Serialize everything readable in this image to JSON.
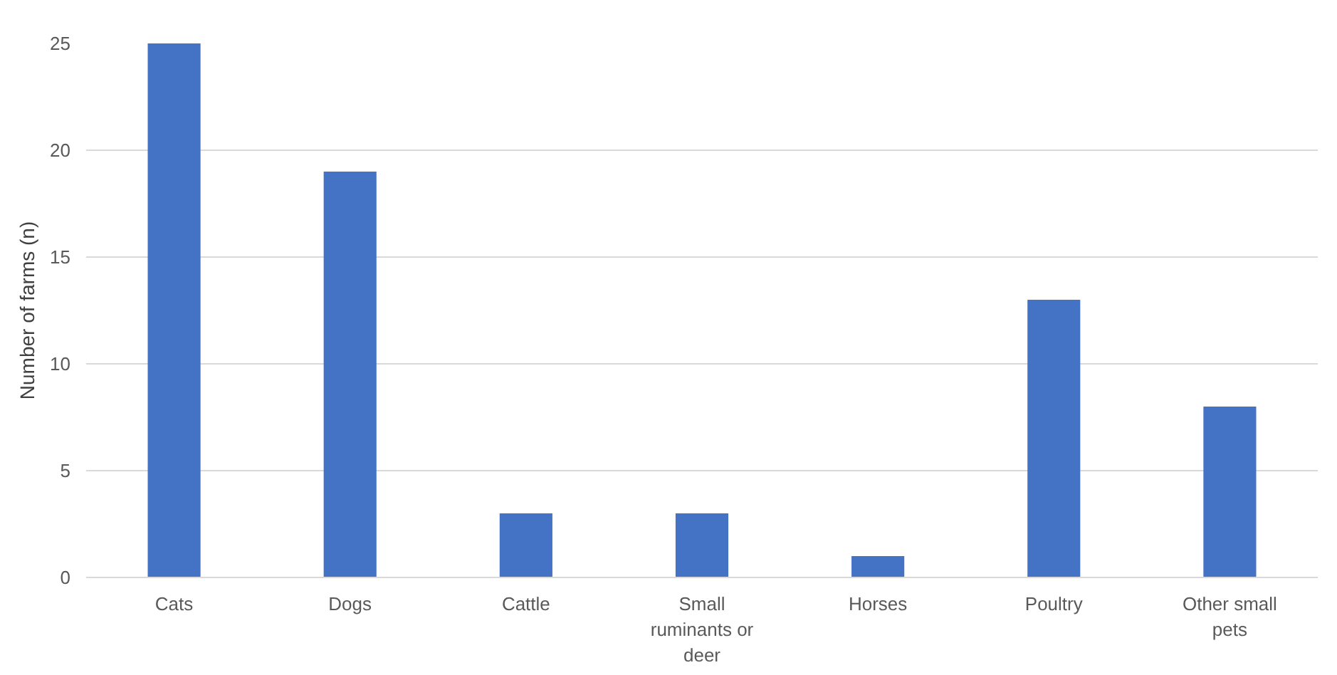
{
  "chart_data": {
    "type": "bar",
    "ylabel": "Number of farms (n)",
    "categories": [
      "Cats",
      "Dogs",
      "Cattle",
      "Small ruminants or deer",
      "Horses",
      "Poultry",
      "Other small pets"
    ],
    "values": [
      25,
      19,
      3,
      3,
      1,
      13,
      8
    ],
    "color": "#4472c4",
    "ylim": [
      0,
      25
    ],
    "yticks": [
      0,
      5,
      10,
      15,
      20,
      25
    ],
    "grid": "y"
  }
}
